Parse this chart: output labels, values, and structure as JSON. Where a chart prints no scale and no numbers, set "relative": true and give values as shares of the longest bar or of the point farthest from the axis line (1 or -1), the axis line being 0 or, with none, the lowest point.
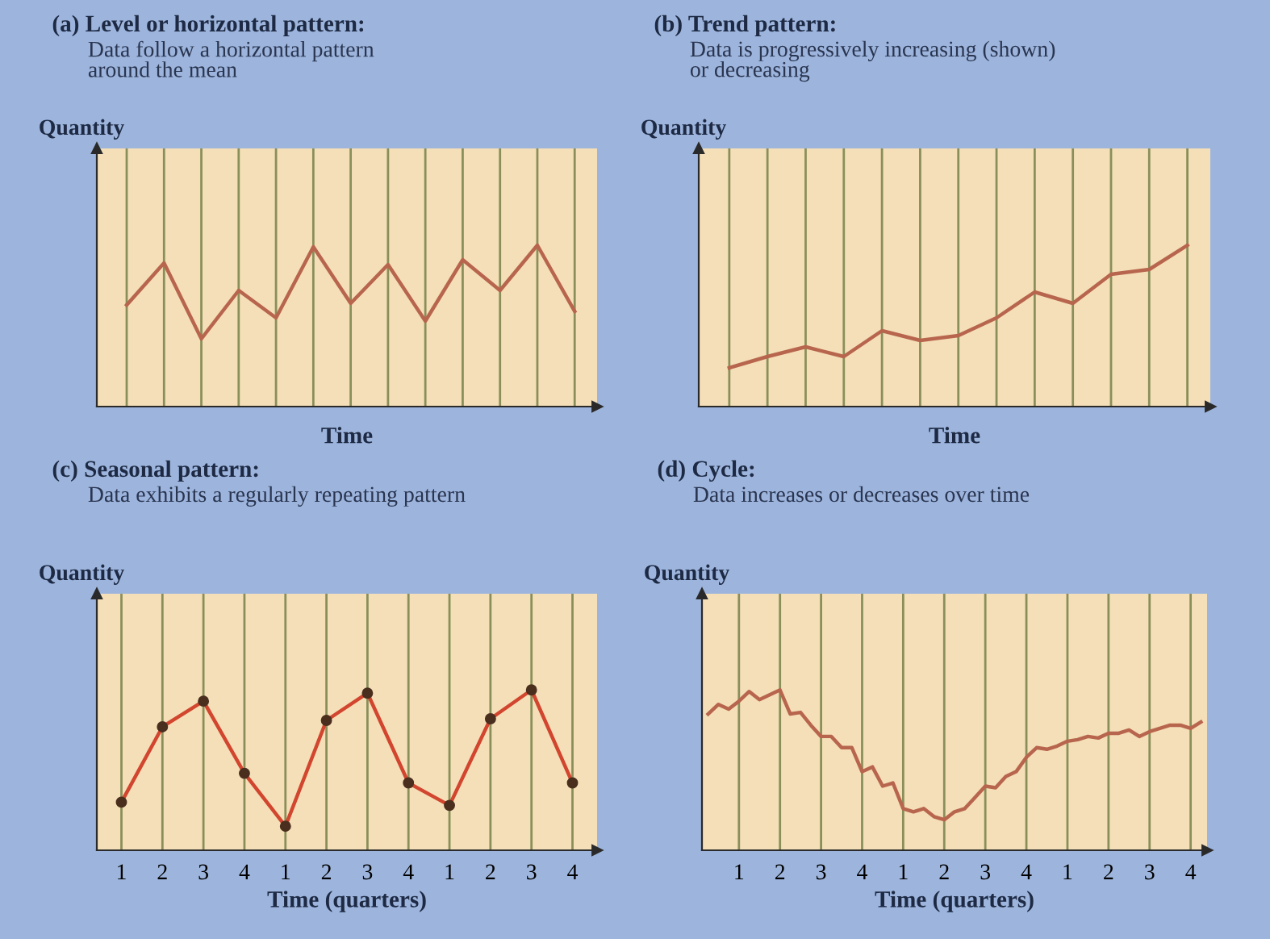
{
  "chart_data": [
    {
      "type": "line",
      "title": "(a) Level or horizontal pattern:",
      "subtitle": "Data follow a horizontal pattern\naround the mean",
      "ylabel": "Quantity",
      "xlabel": "Time",
      "relative": true,
      "grid": "x",
      "categories": [
        null,
        null,
        null,
        null,
        null,
        null,
        null,
        null,
        null,
        null,
        null,
        null,
        null
      ],
      "series": [
        {
          "color": "#b8654e",
          "values": [
            0.63,
            0.89,
            0.42,
            0.72,
            0.55,
            0.99,
            0.64,
            0.88,
            0.53,
            0.91,
            0.72,
            1.0,
            0.59
          ]
        }
      ]
    },
    {
      "type": "line",
      "title": "(b) Trend pattern:",
      "subtitle": "Data is progressively increasing (shown)\nor decreasing",
      "ylabel": "Quantity",
      "xlabel": "Time",
      "relative": true,
      "grid": "x",
      "categories": [
        null,
        null,
        null,
        null,
        null,
        null,
        null,
        null,
        null,
        null,
        null,
        null,
        null
      ],
      "series": [
        {
          "color": "#b8654e",
          "values": [
            0.24,
            0.31,
            0.37,
            0.31,
            0.47,
            0.41,
            0.44,
            0.55,
            0.71,
            0.64,
            0.82,
            0.85,
            1.0
          ]
        }
      ]
    },
    {
      "type": "line",
      "title": "(c) Seasonal pattern:",
      "subtitle": "Data exhibits a regularly repeating pattern",
      "ylabel": "Quantity",
      "xlabel": "Time (quarters)",
      "relative": true,
      "grid": "x",
      "marker": "circle",
      "categories": [
        "1",
        "2",
        "3",
        "4",
        "1",
        "2",
        "3",
        "4",
        "1",
        "2",
        "3",
        "4"
      ],
      "series": [
        {
          "color": "#d2452e",
          "values": [
            0.3,
            0.77,
            0.93,
            0.48,
            0.15,
            0.81,
            0.98,
            0.42,
            0.28,
            0.82,
            1.0,
            0.42
          ]
        }
      ]
    },
    {
      "type": "line",
      "title": "(d) Cycle:",
      "subtitle": "Data increases or decreases over time",
      "ylabel": "Quantity",
      "xlabel": "Time (quarters)",
      "relative": true,
      "grid": "x",
      "categories": [
        null,
        null,
        null,
        "1",
        null,
        null,
        null,
        "2",
        null,
        null,
        null,
        "3",
        null,
        null,
        null,
        "4",
        null,
        null,
        null,
        "1",
        null,
        null,
        null,
        "2",
        null,
        null,
        null,
        "3",
        null,
        null,
        null,
        "4",
        null,
        null,
        null,
        "1",
        null,
        null,
        null,
        "2",
        null,
        null,
        null,
        "3",
        null,
        null,
        null,
        "4",
        null
      ],
      "series": [
        {
          "color": "#b8654e",
          "values": [
            0.85,
            0.91,
            0.88,
            0.93,
            0.99,
            0.94,
            0.97,
            1.0,
            0.85,
            0.86,
            0.78,
            0.71,
            0.71,
            0.64,
            0.64,
            0.49,
            0.52,
            0.4,
            0.42,
            0.26,
            0.24,
            0.26,
            0.21,
            0.19,
            0.24,
            0.26,
            0.33,
            0.4,
            0.39,
            0.46,
            0.49,
            0.58,
            0.64,
            0.63,
            0.65,
            0.68,
            0.69,
            0.71,
            0.7,
            0.73,
            0.73,
            0.75,
            0.71,
            0.74,
            0.76,
            0.78,
            0.78,
            0.76,
            0.8
          ]
        }
      ]
    }
  ]
}
